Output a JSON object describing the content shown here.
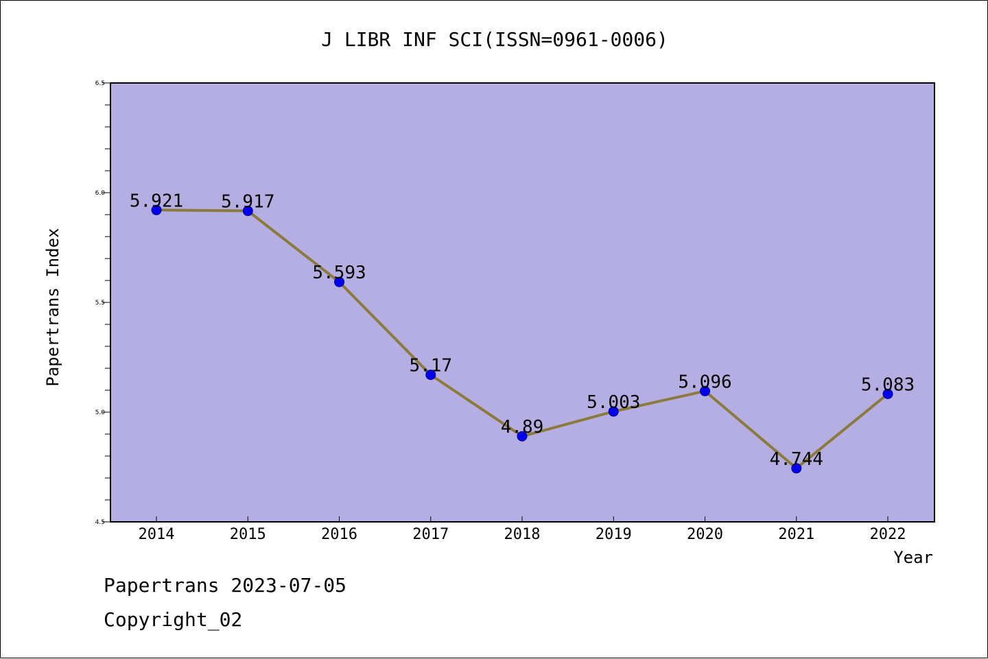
{
  "chart_data": {
    "type": "line",
    "title": "J LIBR INF SCI(ISSN=0961-0006)",
    "xlabel": "Year",
    "ylabel": "Papertrans Index",
    "categories": [
      "2014",
      "2015",
      "2016",
      "2017",
      "2018",
      "2019",
      "2020",
      "2021",
      "2022"
    ],
    "series": [
      {
        "values": [
          5.921,
          5.917,
          5.593,
          5.17,
          4.89,
          5.003,
          5.096,
          4.744,
          5.083
        ],
        "data_labels": [
          "5.921",
          "5.917",
          "5.593",
          "5.17",
          "4.89",
          "5.003",
          "5.096",
          "4.744",
          "5.083"
        ]
      }
    ],
    "ylim": [
      4.5,
      6.5
    ],
    "y_ticks": [
      "4.5",
      "5.0",
      "5.5",
      "6.0",
      "6.5"
    ],
    "y_minor_step": 0.1,
    "grid": false,
    "legend": "none",
    "colors": {
      "plot_background": "#b4aee2",
      "line": "#8c7a3c",
      "marker": "#0000ee",
      "marker_edge": "#00008b"
    }
  },
  "footer": {
    "line1": "Papertrans 2023-07-05",
    "line2": "Copyright_02"
  }
}
